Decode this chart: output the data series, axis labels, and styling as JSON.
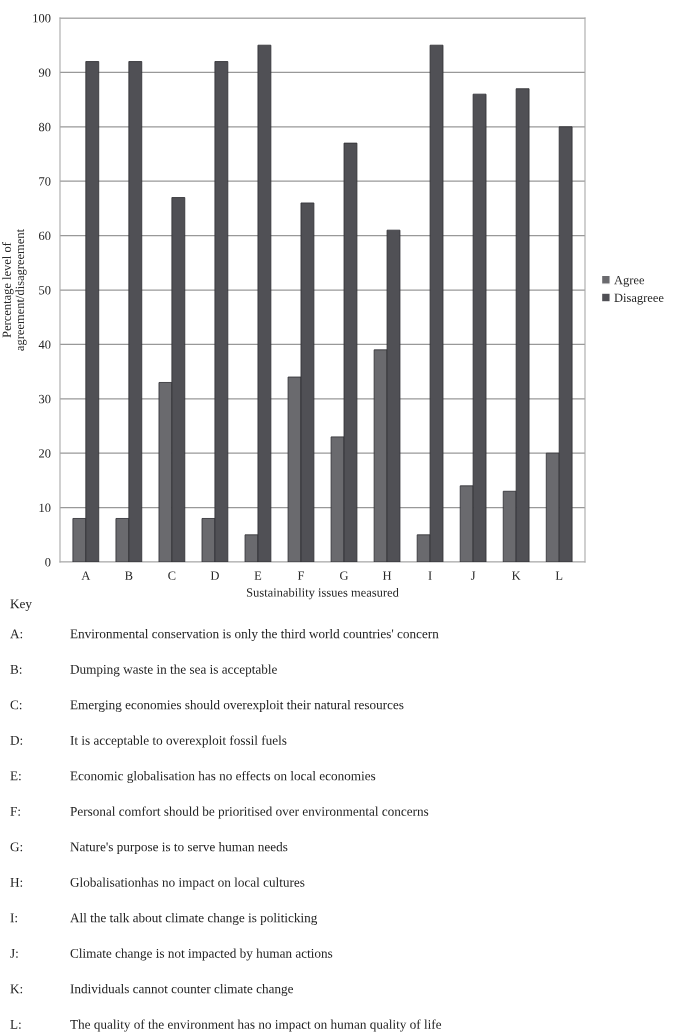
{
  "chart_data": {
    "type": "bar",
    "xlabel": "Sustainability issues measured",
    "ylabel": "Percentage level of\nagreement/disagreement",
    "categories": [
      "A",
      "B",
      "C",
      "D",
      "E",
      "F",
      "G",
      "H",
      "I",
      "J",
      "K",
      "L"
    ],
    "series": [
      {
        "name": "Agree",
        "color": "#6a6a6e",
        "values": [
          8,
          8,
          33,
          8,
          5,
          34,
          23,
          39,
          5,
          14,
          13,
          20
        ]
      },
      {
        "name": "Disagreee",
        "color": "#505055",
        "values": [
          92,
          92,
          67,
          92,
          95,
          66,
          77,
          61,
          95,
          86,
          87,
          80
        ]
      }
    ],
    "ylim": [
      0,
      100
    ],
    "yticks": [
      0,
      10,
      20,
      30,
      40,
      50,
      60,
      70,
      80,
      90,
      100
    ],
    "grid": "y",
    "legend": "right",
    "annotations": [
      "Key",
      "A:\tEnvironmental conservation is only the third world countries' concern",
      "B:\tDumping waste in the sea is acceptable",
      "C:\tEmerging economies should overexploit their natural resources",
      "D:\tIt is acceptable to overexploit fossil fuels",
      "E:\tEconomic globalisation has no effects on local economies",
      "F:\tPersonal comfort should be prioritised over environmental concerns",
      "G:\tNature's purpose is to serve human needs",
      "H:\tGlobalisationhas no impact on local cultures",
      "I:\tAll the talk about climate change is politicking",
      "J:\tClimate change is not impacted by human actions",
      "K:\tIndividuals cannot counter climate change",
      "L:\tThe quality of the environment has no impact on human quality of life"
    ]
  }
}
